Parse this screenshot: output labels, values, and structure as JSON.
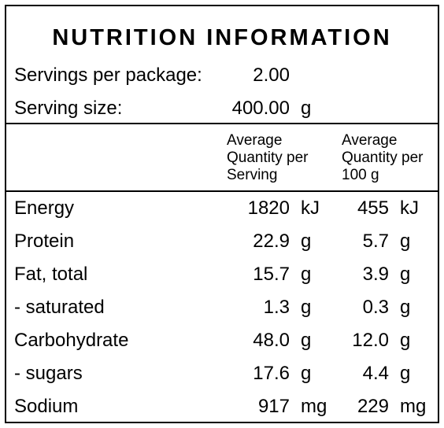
{
  "title": "NUTRITION INFORMATION",
  "servings": {
    "label": "Servings per package:",
    "value": "2.00"
  },
  "serving_size": {
    "label": "Serving size:",
    "value": "400.00",
    "unit": "g"
  },
  "headers": {
    "per_serving": "Average\nQuantity per\nServing",
    "per_100g": "Average\nQuantity per\n100 g"
  },
  "rows": [
    {
      "label": "Energy",
      "serving": "1820",
      "serving_unit": "kJ",
      "per100": "455",
      "per100_unit": "kJ"
    },
    {
      "label": "Protein",
      "serving": "22.9",
      "serving_unit": "g",
      "per100": "5.7",
      "per100_unit": "g"
    },
    {
      "label": "Fat, total",
      "serving": "15.7",
      "serving_unit": "g",
      "per100": "3.9",
      "per100_unit": "g"
    },
    {
      "label": "- saturated",
      "serving": "1.3",
      "serving_unit": "g",
      "per100": "0.3",
      "per100_unit": "g"
    },
    {
      "label": "Carbohydrate",
      "serving": "48.0",
      "serving_unit": "g",
      "per100": "12.0",
      "per100_unit": "g"
    },
    {
      "label": "- sugars",
      "serving": "17.6",
      "serving_unit": "g",
      "per100": "4.4",
      "per100_unit": "g"
    },
    {
      "label": "Sodium",
      "serving": "917",
      "serving_unit": "mg",
      "per100": "229",
      "per100_unit": "mg"
    }
  ]
}
